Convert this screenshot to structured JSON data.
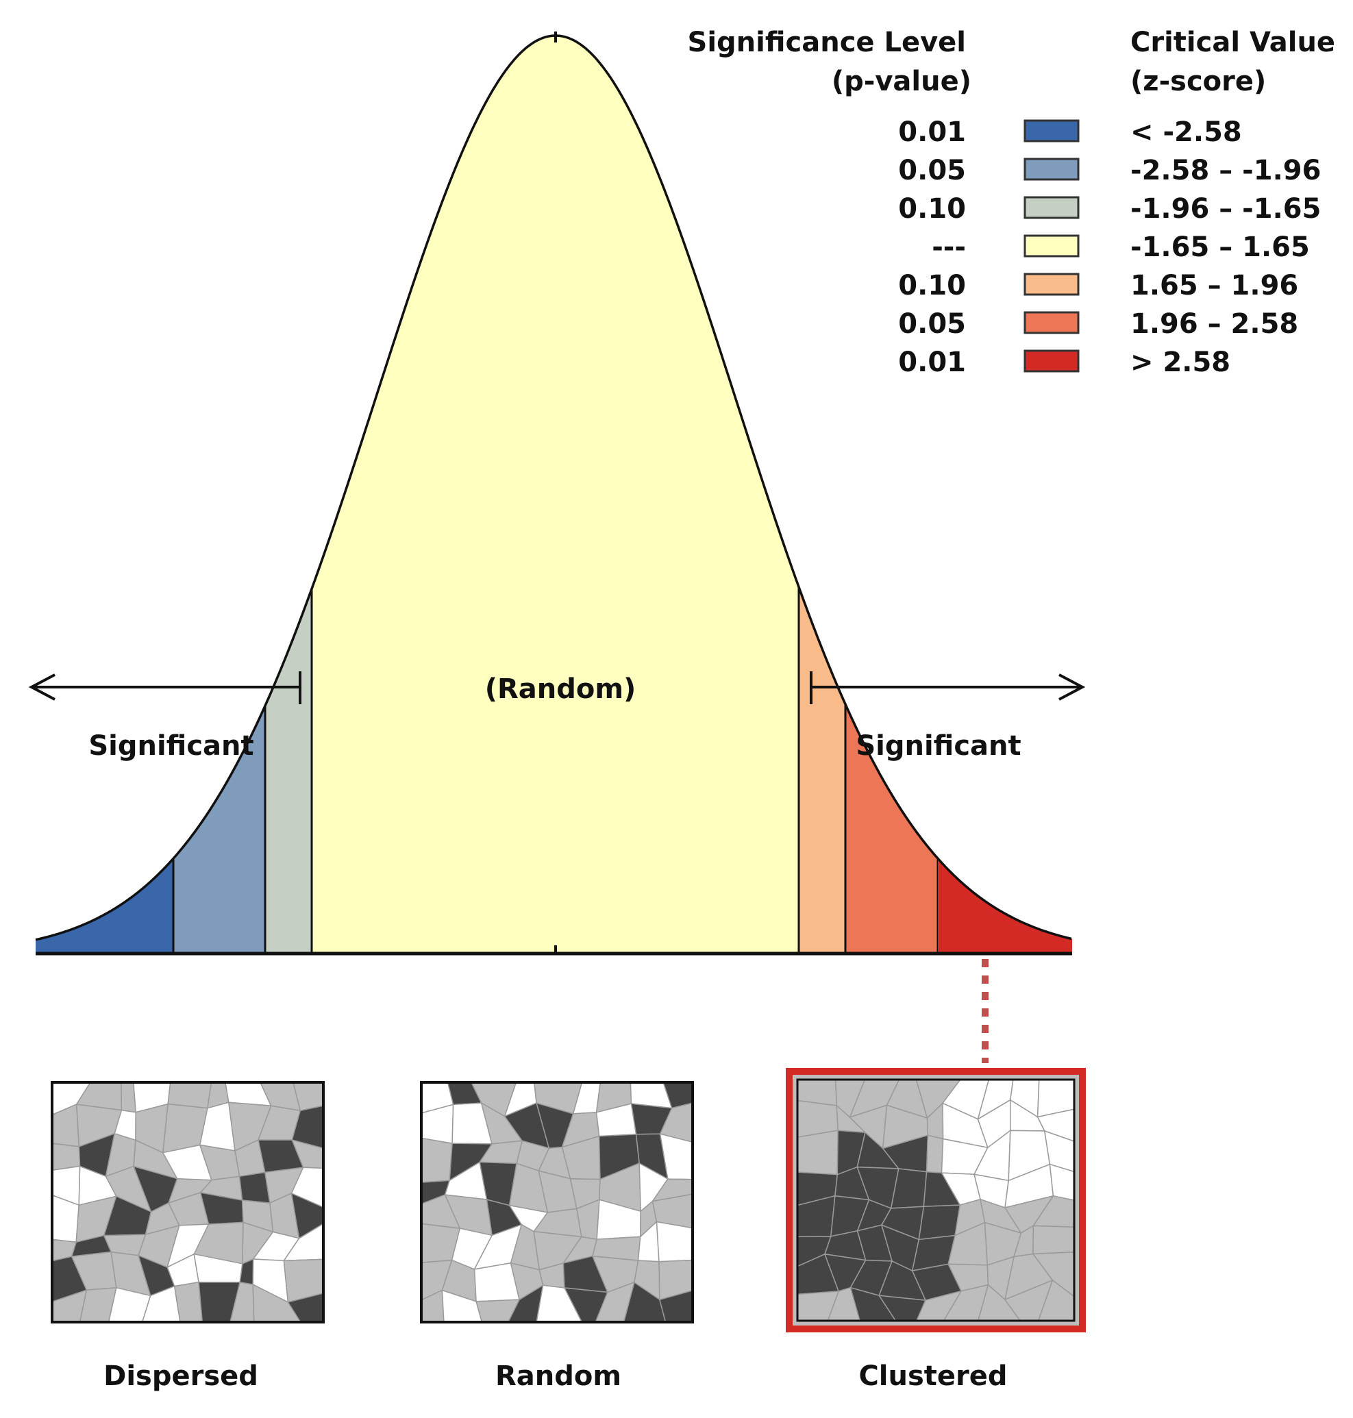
{
  "legend": {
    "heading_p_line1": "Significance Level",
    "heading_p_line2": "(p-value)",
    "heading_z_line1": "Critical Value",
    "heading_z_line2": "(z-score)",
    "rows": [
      {
        "p": "0.01",
        "z": "< -2.58",
        "color": "#3a66aa"
      },
      {
        "p": "0.05",
        "z": "-2.58 – -1.96",
        "color": "#7f9cbd"
      },
      {
        "p": "0.10",
        "z": "-1.96 – -1.65",
        "color": "#c6cfc4"
      },
      {
        "p": "---",
        "z": "-1.65 – 1.65",
        "color": "#ffffc0"
      },
      {
        "p": "0.10",
        "z": "1.65 – 1.96",
        "color": "#f9bb89"
      },
      {
        "p": "0.05",
        "z": "1.96 – 2.58",
        "color": "#ed7656"
      },
      {
        "p": "0.01",
        "z": "> 2.58",
        "color": "#d42a25"
      }
    ]
  },
  "curve": {
    "center_label": "(Random)",
    "left_label": "Significant",
    "right_label": "Significant"
  },
  "maps": [
    {
      "label": "Dispersed",
      "pattern": "dispersed"
    },
    {
      "label": "Random",
      "pattern": "random"
    },
    {
      "label": "Clustered",
      "pattern": "clustered",
      "highlight_color": "#d42a25"
    }
  ]
}
